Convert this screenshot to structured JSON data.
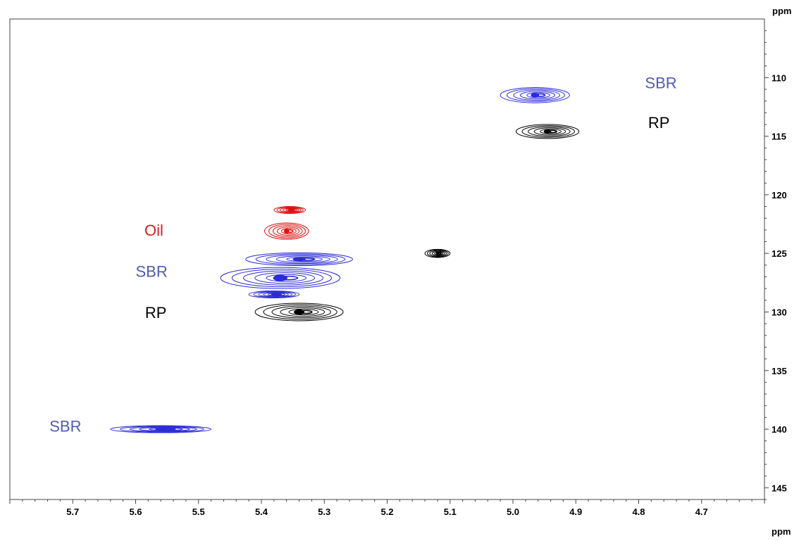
{
  "chart_data": {
    "type": "contour",
    "title": "",
    "x_unit_label": "ppm",
    "y_unit_label": "ppm",
    "x_axis": {
      "min": 5.8,
      "max": 4.6,
      "reversed": true,
      "tick_labels": [
        "5.7",
        "5.6",
        "5.5",
        "5.4",
        "5.3",
        "5.2",
        "5.1",
        "5.0",
        "4.9",
        "4.8",
        "4.7"
      ],
      "tick_values": [
        5.7,
        5.6,
        5.5,
        5.4,
        5.3,
        5.2,
        5.1,
        5.0,
        4.9,
        4.8,
        4.7
      ]
    },
    "y_axis": {
      "min": 105,
      "max": 146,
      "tick_labels": [
        "110",
        "115",
        "120",
        "125",
        "130",
        "135",
        "140",
        "145"
      ],
      "tick_values": [
        110,
        115,
        120,
        125,
        130,
        135,
        140,
        145
      ],
      "position": "right"
    },
    "colors": {
      "SBR": "#2B2BD9",
      "RP": "#000000",
      "Oil": "#E01010"
    },
    "label_colors": {
      "SBR": "#4F5BB5",
      "RP": "#000000",
      "Oil": "#D42020"
    },
    "peaks": [
      {
        "series": "SBR",
        "x": 4.965,
        "y": 111.5,
        "rx": 0.055,
        "ry": 0.65
      },
      {
        "series": "RP",
        "x": 4.945,
        "y": 114.6,
        "rx": 0.05,
        "ry": 0.6
      },
      {
        "series": "Oil",
        "x": 5.355,
        "y": 121.3,
        "rx": 0.025,
        "ry": 0.3
      },
      {
        "series": "Oil",
        "x": 5.36,
        "y": 123.1,
        "rx": 0.035,
        "ry": 0.7
      },
      {
        "series": "SBR",
        "x": 5.34,
        "y": 125.5,
        "rx": 0.085,
        "ry": 0.55
      },
      {
        "series": "RP",
        "x": 5.12,
        "y": 125.0,
        "rx": 0.02,
        "ry": 0.35
      },
      {
        "series": "SBR",
        "x": 5.37,
        "y": 127.1,
        "rx": 0.095,
        "ry": 0.9
      },
      {
        "series": "SBR",
        "x": 5.38,
        "y": 128.5,
        "rx": 0.04,
        "ry": 0.3
      },
      {
        "series": "RP",
        "x": 5.34,
        "y": 130.0,
        "rx": 0.07,
        "ry": 0.75
      },
      {
        "series": "SBR",
        "x": 5.56,
        "y": 140.0,
        "rx": 0.08,
        "ry": 0.3
      }
    ],
    "annotations": [
      {
        "text": "SBR",
        "series": "SBR",
        "x": 4.79,
        "y": 110.9
      },
      {
        "text": "RP",
        "series": "RP",
        "x": 4.785,
        "y": 114.3
      },
      {
        "text": "Oil",
        "series": "Oil",
        "x": 5.586,
        "y": 123.5
      },
      {
        "text": "SBR",
        "series": "SBR",
        "x": 5.6,
        "y": 127.0
      },
      {
        "text": "RP",
        "series": "RP",
        "x": 5.585,
        "y": 130.5
      },
      {
        "text": "SBR",
        "series": "SBR",
        "x": 5.737,
        "y": 140.2
      }
    ]
  }
}
